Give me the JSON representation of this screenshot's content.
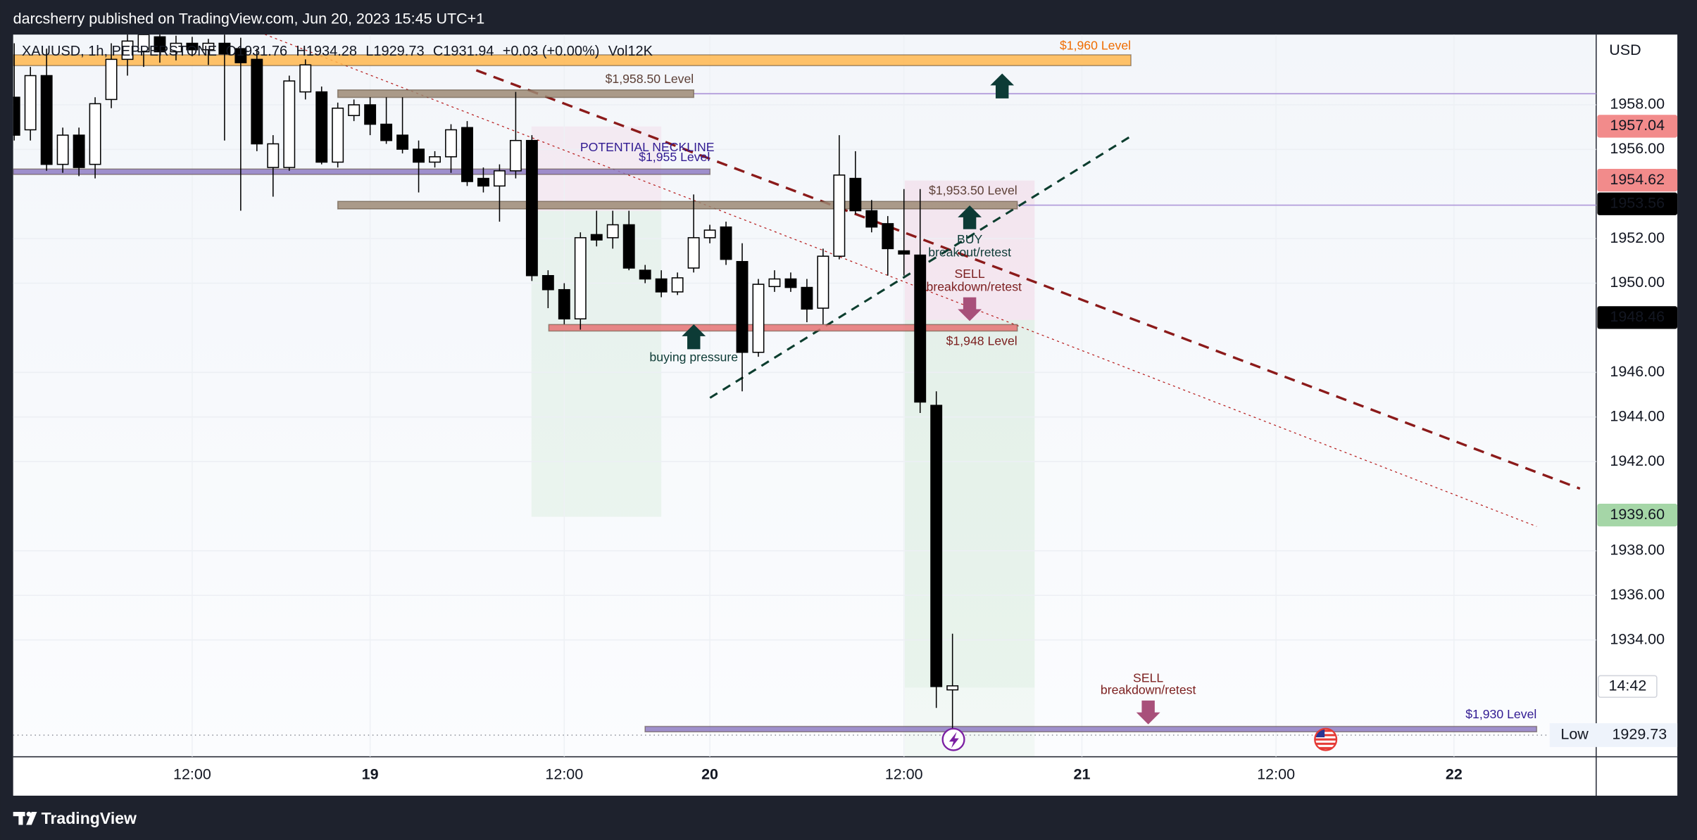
{
  "page": {
    "publisher": "darcsherry published on TradingView.com, Jun 20, 2023 15:45 UTC+1",
    "brand": "TradingView"
  },
  "chart_data": {
    "type": "candlestick",
    "legend_text": [
      "XAUUSD, 1h, PEPPERSTONE",
      "O1931.76",
      "H1934.28",
      "L1929.73",
      "C1931.94",
      "+0.03 (+0.00%)",
      "Vol12K"
    ],
    "currency": "USD",
    "categories": [
      null,
      null,
      null,
      null,
      null,
      null,
      null,
      null,
      null,
      null,
      null,
      "12:00",
      null,
      null,
      null,
      null,
      null,
      null,
      null,
      null,
      null,
      null,
      "19",
      null,
      null,
      null,
      null,
      null,
      null,
      null,
      null,
      null,
      null,
      null,
      "12:00",
      null,
      null,
      null,
      null,
      null,
      null,
      null,
      null,
      "20",
      null,
      null,
      null,
      null,
      null,
      null,
      null,
      null,
      null,
      null,
      null,
      "12:00",
      null,
      null,
      null,
      null,
      null,
      null,
      null,
      null,
      null,
      null,
      "21",
      null,
      null,
      null,
      null,
      null,
      null,
      null,
      null,
      null,
      null,
      null,
      "12:00",
      null,
      null,
      null,
      null,
      null,
      null,
      null,
      null,
      null,
      null,
      "22",
      null,
      null,
      null,
      null,
      null,
      null,
      null,
      null
    ],
    "open": [
      1958.34,
      1956.88,
      1959.31,
      1955.33,
      1956.64,
      1955.33,
      1958.24,
      1960.04,
      1960.38,
      1961.05,
      1960.38,
      1960.76,
      1960.47,
      1960.76,
      1960.52,
      1960.04,
      1955.19,
      1955.19,
      1958.58,
      1958.58,
      1955.43,
      1957.52,
      1958,
      1957.13,
      1956.64,
      1956.01,
      1955.43,
      1955.67,
      1956.98,
      1954.7,
      1954.36,
      1955.04,
      1956.4,
      1950.34,
      1949.71,
      1948.4,
      1952.18,
      1952.04,
      1952.62,
      1950.58,
      1950.19,
      1949.61,
      1950.68,
      1952.04,
      1952.52,
      1950.97,
      1946.9,
      1949.85,
      1950.19,
      1949.81,
      1948.88,
      1951.21,
      1954.7,
      1953.25,
      1952.67,
      1951.45,
      1951.26,
      1944.52,
      1931.76,
      null,
      null,
      null,
      null,
      null,
      null,
      null,
      null,
      null,
      null,
      null,
      null,
      null,
      null,
      null,
      null,
      null,
      null,
      null,
      null,
      null,
      null,
      null,
      null,
      null,
      null,
      null,
      null,
      null,
      null,
      null,
      null,
      null,
      null,
      null,
      null,
      null,
      null,
      null
    ],
    "high": [
      1960.76,
      1959.7,
      1960.52,
      1956.98,
      1956.98,
      1958.34,
      1960.76,
      1961.25,
      1961.35,
      1961.25,
      1961.1,
      1961.05,
      1960.96,
      1961.15,
      1961.01,
      1960.52,
      1956.64,
      1959.31,
      1960.04,
      1958.82,
      1958.1,
      1958.24,
      1958.34,
      1958.34,
      1958.34,
      1956.4,
      1955.92,
      1957.13,
      1957.27,
      1955.19,
      1955.33,
      1958.58,
      1956.64,
      1950.58,
      1950.0,
      1952.28,
      1953.25,
      1953.25,
      1953.25,
      1950.82,
      1950.58,
      1950.48,
      1953.98,
      1952.62,
      1952.76,
      1951.79,
      1950.19,
      1950.58,
      1950.48,
      1950.19,
      1951.55,
      1956.64,
      1955.92,
      1953.73,
      1953.01,
      1954.22,
      1954.22,
      1945.15,
      1934.28,
      null,
      null,
      null,
      null,
      null,
      null,
      null,
      null,
      null,
      null,
      null,
      null,
      null,
      null,
      null,
      null,
      null,
      null,
      null,
      null,
      null,
      null,
      null,
      null,
      null,
      null,
      null,
      null,
      null,
      null,
      null,
      null,
      null,
      null,
      null,
      null,
      null,
      null,
      null
    ],
    "low": [
      1956.4,
      1956.4,
      1955.04,
      1954.95,
      1954.8,
      1954.7,
      1957.85,
      1959.31,
      1959.7,
      1959.89,
      1959.99,
      1960.18,
      1959.79,
      1956.4,
      1953.25,
      1955.92,
      1953.88,
      1955.04,
      1958.24,
      1955.33,
      1955.19,
      1957.27,
      1956.64,
      1956.25,
      1955.82,
      1954.07,
      1955.19,
      1954.95,
      1954.36,
      1954.07,
      1952.76,
      1954.7,
      1950.1,
      1948.88,
      1948.16,
      1947.92,
      1951.65,
      1951.55,
      1950.58,
      1950.0,
      1949.37,
      1949.47,
      1950.48,
      1951.79,
      1950.82,
      1945.15,
      1946.7,
      1949.61,
      1949.61,
      1948.25,
      1948.16,
      1951.07,
      1953.1,
      1952.28,
      1950.34,
      1950.34,
      1944.18,
      1930.95,
      1929.73,
      null,
      null,
      null,
      null,
      null,
      null,
      null,
      null,
      null,
      null,
      null,
      null,
      null,
      null,
      null,
      null,
      null,
      null,
      null,
      null,
      null,
      null,
      null,
      null,
      null,
      null,
      null,
      null,
      null,
      null,
      null,
      null,
      null,
      null,
      null,
      null,
      null,
      null,
      null
    ],
    "close": [
      1956.64,
      1959.31,
      1955.33,
      1956.64,
      1955.19,
      1958.05,
      1960.04,
      1960.86,
      1961.15,
      1960.38,
      1960.76,
      1960.47,
      1960.76,
      1960.28,
      1959.89,
      1956.25,
      1956.25,
      1959.07,
      1959.79,
      1955.43,
      1957.85,
      1958,
      1957.13,
      1956.4,
      1956.01,
      1955.43,
      1955.67,
      1956.88,
      1954.56,
      1954.36,
      1955.04,
      1956.4,
      1950.34,
      1949.71,
      1948.4,
      1952.04,
      1951.94,
      1952.62,
      1950.68,
      1950.19,
      1949.61,
      1950.24,
      1952.04,
      1952.38,
      1951.07,
      1946.9,
      1949.95,
      1950.19,
      1949.81,
      1948.84,
      1951.21,
      1954.85,
      1953.25,
      1952.52,
      1951.55,
      1951.31,
      1944.67,
      1931.91,
      1931.94,
      null,
      null,
      null,
      null,
      null,
      null,
      null,
      null,
      null,
      null,
      null,
      null,
      null,
      null,
      null,
      null,
      null,
      null,
      null,
      null,
      null,
      null,
      null,
      null,
      null,
      null,
      null,
      null,
      null,
      null,
      null,
      null,
      null,
      null,
      null,
      null,
      null,
      null,
      null
    ],
    "up_color": "#ffffff",
    "down_color": "#000000",
    "wick_color": "#000000",
    "ylim": [
      1928.76,
      1961.15
    ],
    "yticks": [
      {
        "value": 1958,
        "label": "1958.00"
      },
      {
        "value": 1956,
        "label": "1956.00"
      },
      {
        "value": 1952,
        "label": "1952.00"
      },
      {
        "value": 1950,
        "label": "1950.00"
      },
      {
        "value": 1946,
        "label": "1946.00"
      },
      {
        "value": 1944,
        "label": "1944.00"
      },
      {
        "value": 1942,
        "label": "1942.00"
      },
      {
        "value": 1938,
        "label": "1938.00"
      },
      {
        "value": 1936,
        "label": "1936.00"
      },
      {
        "value": 1934,
        "label": "1934.00"
      }
    ],
    "grid": true,
    "price_labels": [
      {
        "value": 1957.04,
        "label": "1957.04",
        "bg": "#f28b8b",
        "fg": "#ffffff"
      },
      {
        "value": 1954.62,
        "label": "1954.62",
        "bg": "#f28b8b",
        "fg": "#ffffff"
      },
      {
        "value": 1953.56,
        "label": "1953.56",
        "bg": "#000000",
        "fg": "#ffffff"
      },
      {
        "value": 1948.46,
        "label": "1948.46",
        "bg": "#000000",
        "fg": "#ffffff"
      },
      {
        "value": 1939.6,
        "label": "1939.60",
        "bg": "#a5d6a7",
        "fg": "#000000"
      }
    ],
    "low_label": {
      "text": "Low",
      "value": 1929.73,
      "label": "1929.73"
    },
    "countdown": "14:42",
    "levels": [
      {
        "label": "$1,960 Level",
        "value": 1960,
        "color": "#ffb74d",
        "text_color": "#ef6c00"
      },
      {
        "label": "$1,958.50 Level",
        "value": 1958.5,
        "color": "#9c8a74",
        "text_color": "#5d4037"
      },
      {
        "label": "$1,955 Level",
        "value": 1955,
        "color": "#8e7cc3",
        "text_color": "#311b92"
      },
      {
        "label": "$1,953.50 Level",
        "value": 1953.5,
        "color": "#9c8a74",
        "text_color": "#5d4037"
      },
      {
        "label": "$1,948 Level",
        "value": 1948,
        "color": "#e57373",
        "text_color": "#7b1f1f"
      },
      {
        "label": "$1,930 Level",
        "value": 1930,
        "color": "#8e7cc3",
        "text_color": "#311b92"
      }
    ],
    "annotations": [
      "POTENTIAL NECKLINE",
      "BUY",
      "breakout/retest",
      "SELL",
      "breakdown/retest",
      "buying pressure",
      "SELL",
      "breakdown/retest"
    ]
  }
}
